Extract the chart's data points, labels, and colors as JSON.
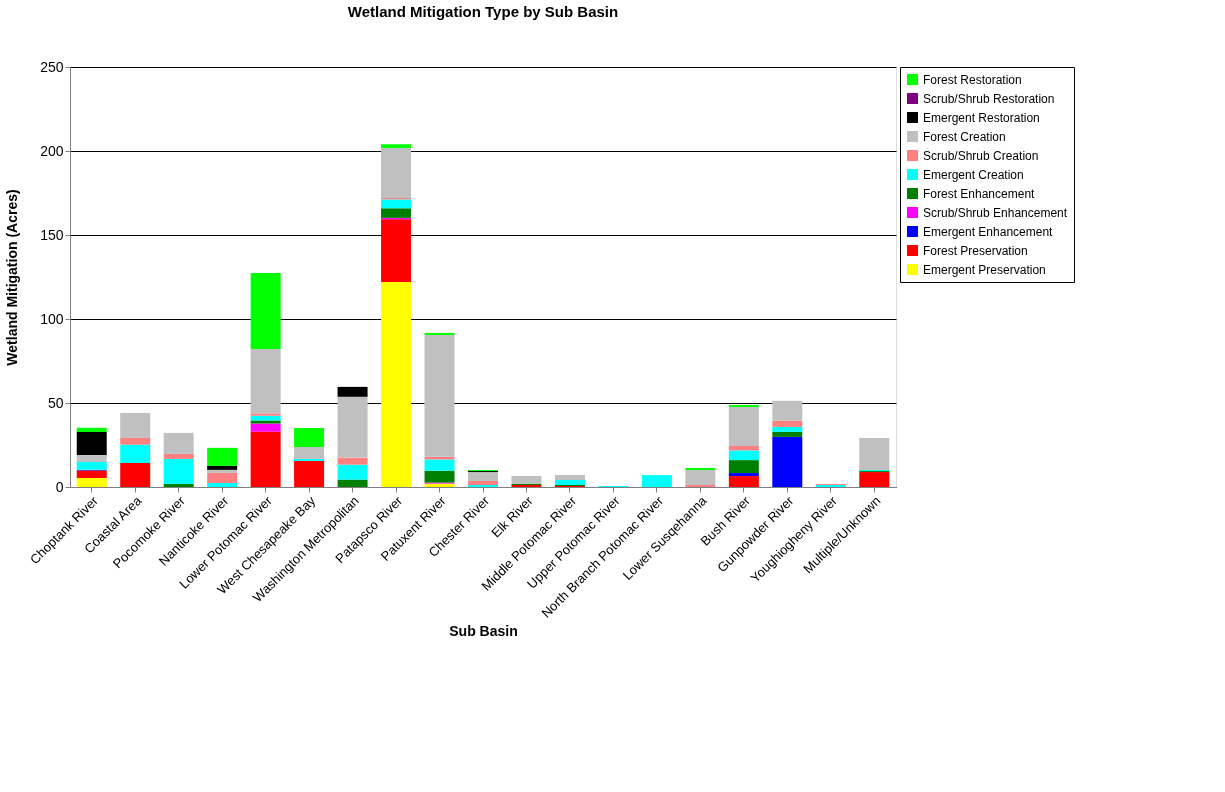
{
  "chart_data": {
    "type": "bar",
    "stacked": true,
    "title": "Wetland Mitigation Type by Sub Basin",
    "xlabel": "Sub Basin",
    "ylabel": "Wetland Mitigation (Acres)",
    "categories": [
      "Choptank River",
      "Coastal Area",
      "Pocomoke River",
      "Nanticoke River",
      "Lower Potomac River",
      "West Chesapeake Bay",
      "Washington Metropolitan",
      "Patapsco River",
      "Patuxent River",
      "Chester River",
      "Elk River",
      "Middle Potomac River",
      "Upper Potomac River",
      "North Branch Potomac River",
      "Lower Susqehanna",
      "Bush River",
      "Gunpowder River",
      "Youghiogheny River",
      "Multiple/Unknown"
    ],
    "series": [
      {
        "name": "Emergent Preservation",
        "color": "#ffff00",
        "values": [
          5.4,
          null,
          null,
          null,
          null,
          null,
          null,
          122,
          2,
          null,
          null,
          null,
          null,
          null,
          null,
          null,
          null,
          null,
          null
        ]
      },
      {
        "name": "Forest Preservation",
        "color": "#ff0000",
        "values": [
          4.4,
          14.3,
          null,
          null,
          33,
          15.5,
          null,
          37.4,
          null,
          null,
          1.2,
          0.6,
          null,
          null,
          null,
          6.5,
          null,
          null,
          8.9
        ]
      },
      {
        "name": "Emergent Enhancement",
        "color": "#0000ff",
        "values": [
          0.5,
          null,
          null,
          null,
          null,
          null,
          null,
          null,
          null,
          null,
          null,
          null,
          null,
          null,
          null,
          1.8,
          29.8,
          null,
          null
        ]
      },
      {
        "name": "Scrub/Shrub Enhancement",
        "color": "#ff00ff",
        "values": [
          null,
          null,
          null,
          null,
          4.8,
          null,
          null,
          0.8,
          0.6,
          null,
          null,
          null,
          null,
          null,
          null,
          null,
          null,
          null,
          null
        ]
      },
      {
        "name": "Forest Enhancement",
        "color": "#008000",
        "values": [
          null,
          null,
          1.8,
          null,
          1.8,
          null,
          4.4,
          5.7,
          7.1,
          null,
          0.6,
          0.6,
          null,
          null,
          null,
          7.7,
          3,
          null,
          0.6
        ]
      },
      {
        "name": "Emergent Creation",
        "color": "#00ffff",
        "values": [
          4.6,
          10.9,
          14.9,
          2.4,
          2.8,
          1.2,
          8.9,
          5.3,
          6.7,
          1.2,
          null,
          3,
          0.6,
          7.1,
          null,
          5.8,
          3,
          1.2,
          0.6
        ]
      },
      {
        "name": "Scrub/Shrub Creation",
        "color": "#ff8080",
        "values": [
          null,
          4,
          3,
          6,
          1.4,
          null,
          4.2,
          0.8,
          1.6,
          2.4,
          null,
          null,
          null,
          null,
          1.2,
          2.6,
          3.6,
          0.6,
          null
        ]
      },
      {
        "name": "Forest Creation",
        "color": "#c0c0c0",
        "values": [
          4.2,
          14.9,
          12.5,
          1.8,
          38.3,
          7.1,
          36.2,
          29.8,
          72.5,
          5.3,
          4.8,
          3,
          null,
          null,
          8.9,
          23.2,
          11.9,
          null,
          19
        ]
      },
      {
        "name": "Emergent Restoration",
        "color": "#000000",
        "values": [
          13.7,
          null,
          null,
          2.4,
          null,
          null,
          5.9,
          null,
          null,
          0.6,
          null,
          null,
          null,
          null,
          null,
          null,
          null,
          null,
          null
        ]
      },
      {
        "name": "Scrub/Shrub Restoration",
        "color": "#800080",
        "values": [
          null,
          null,
          null,
          null,
          null,
          null,
          null,
          null,
          null,
          null,
          null,
          null,
          null,
          null,
          null,
          null,
          null,
          null,
          null
        ]
      },
      {
        "name": "Forest Restoration",
        "color": "#00ff00",
        "values": [
          2.4,
          null,
          null,
          10.7,
          45.3,
          11.3,
          null,
          2.2,
          1.2,
          0.6,
          null,
          null,
          null,
          null,
          1.2,
          1.2,
          null,
          null,
          null
        ]
      }
    ],
    "ylim": [
      0,
      250
    ],
    "yticks": [
      0,
      50,
      100,
      150,
      200,
      250
    ],
    "grid": "y",
    "legend": "right"
  }
}
